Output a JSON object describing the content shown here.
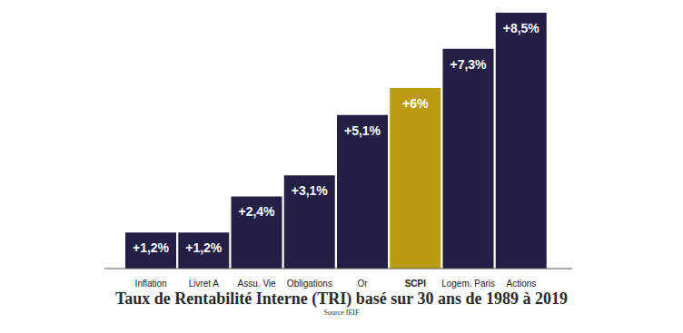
{
  "chart_data": {
    "type": "bar",
    "title": "Taux de Rentabilité Interne (TRI) basé sur 30 ans de 1989 à 2019",
    "subtitle": "Source IEIF",
    "categories": [
      "Inflation",
      "Livret A",
      "Assu. Vie",
      "Obligations",
      "Or",
      "SCPI",
      "Logem. Paris",
      "Actions"
    ],
    "values": [
      1.2,
      1.2,
      2.4,
      3.1,
      5.1,
      6,
      7.3,
      8.5
    ],
    "value_labels": [
      "+1,2%",
      "+1,2%",
      "+2,4%",
      "+3,1%",
      "+5,1%",
      "+6%",
      "+7,3%",
      "+8,5%"
    ],
    "colors": [
      "#231f45",
      "#231f45",
      "#231f45",
      "#231f45",
      "#231f45",
      "#bb9a14",
      "#231f45",
      "#231f45"
    ],
    "ylim": [
      0,
      8.5
    ],
    "data_labels": true,
    "tick_labels": "x"
  }
}
